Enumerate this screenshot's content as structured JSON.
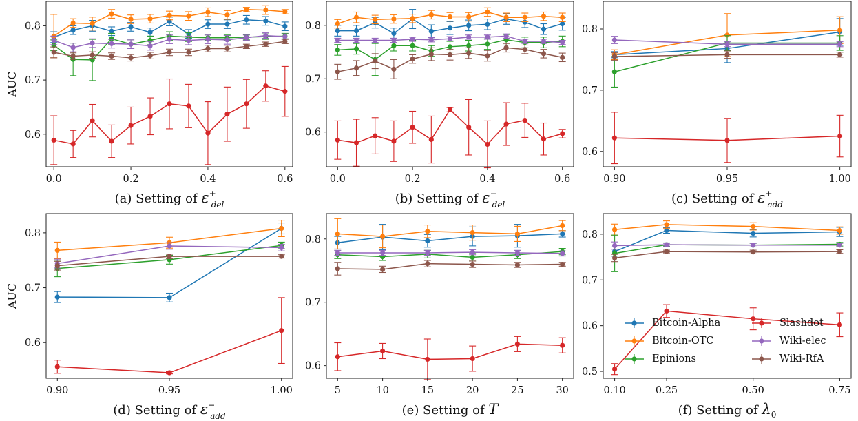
{
  "figure": {
    "series_colors": {
      "Bitcoin-Alpha": "#1f77b4",
      "Bitcoin-OTC": "#ff7f0e",
      "Epinions": "#2ca02c",
      "Slashdot": "#d62728",
      "Wiki-elec": "#9467bd",
      "Wiki-RfA": "#8c564b"
    },
    "ylabel": "AUC",
    "legend": {
      "placement": "lower-right of panel (f)",
      "entries": [
        "Bitcoin-Alpha",
        "Bitcoin-OTC",
        "Epinions",
        "Slashdot",
        "Wiki-elec",
        "Wiki-RfA"
      ]
    }
  },
  "chart_data": [
    {
      "type": "line",
      "panel": "a",
      "caption": "(a) Setting of ε⁺del",
      "caption_text": "(a) Setting of ",
      "caption_sym": "ε",
      "caption_sup": "+",
      "caption_sub": "del",
      "ylabel": "AUC",
      "xlim": [
        -0.02,
        0.62
      ],
      "ylim": [
        0.54,
        0.845
      ],
      "xticks": [
        0.0,
        0.2,
        0.4,
        0.6
      ],
      "xtick_labels": [
        "0.0",
        "0.2",
        "0.4",
        "0.6"
      ],
      "yticks": [
        0.6,
        0.7,
        0.8
      ],
      "ytick_labels": [
        "0.6",
        "0.7",
        "0.8"
      ],
      "x": [
        0.0,
        0.05,
        0.1,
        0.15,
        0.2,
        0.25,
        0.3,
        0.35,
        0.4,
        0.45,
        0.5,
        0.55,
        0.6
      ],
      "series": [
        {
          "name": "Bitcoin-Alpha",
          "values": [
            0.779,
            0.792,
            0.8,
            0.79,
            0.798,
            0.788,
            0.808,
            0.785,
            0.803,
            0.803,
            0.811,
            0.809,
            0.799
          ],
          "errors": [
            0.01,
            0.008,
            0.01,
            0.008,
            0.008,
            0.008,
            0.008,
            0.008,
            0.008,
            0.008,
            0.008,
            0.008,
            0.008
          ]
        },
        {
          "name": "Bitcoin-OTC",
          "values": [
            0.781,
            0.805,
            0.804,
            0.822,
            0.812,
            0.813,
            0.819,
            0.818,
            0.825,
            0.82,
            0.83,
            0.829,
            0.826
          ],
          "errors": [
            0.04,
            0.008,
            0.012,
            0.008,
            0.008,
            0.008,
            0.008,
            0.008,
            0.008,
            0.008,
            0.004,
            0.008,
            0.004
          ]
        },
        {
          "name": "Epinions",
          "values": [
            0.764,
            0.738,
            0.737,
            0.776,
            0.766,
            0.773,
            0.781,
            0.779,
            0.778,
            0.778,
            0.779,
            0.78,
            0.781
          ],
          "errors": [
            0.01,
            0.03,
            0.038,
            0.01,
            0.008,
            0.008,
            0.008,
            0.008,
            0.005,
            0.005,
            0.005,
            0.005,
            0.005
          ]
        },
        {
          "name": "Slashdot",
          "values": [
            0.589,
            0.582,
            0.625,
            0.587,
            0.616,
            0.633,
            0.656,
            0.652,
            0.602,
            0.637,
            0.656,
            0.689,
            0.679
          ],
          "errors": [
            0.045,
            0.025,
            0.03,
            0.03,
            0.034,
            0.034,
            0.046,
            0.04,
            0.058,
            0.05,
            0.045,
            0.028,
            0.046
          ]
        },
        {
          "name": "Wiki-elec",
          "values": [
            0.773,
            0.76,
            0.768,
            0.767,
            0.766,
            0.763,
            0.775,
            0.773,
            0.775,
            0.774,
            0.778,
            0.782,
            0.78
          ],
          "errors": [
            0.008,
            0.008,
            0.008,
            0.008,
            0.008,
            0.008,
            0.008,
            0.008,
            0.008,
            0.008,
            0.005,
            0.005,
            0.005
          ]
        },
        {
          "name": "Wiki-RfA",
          "values": [
            0.751,
            0.744,
            0.746,
            0.744,
            0.741,
            0.745,
            0.751,
            0.751,
            0.758,
            0.758,
            0.762,
            0.766,
            0.771
          ],
          "errors": [
            0.01,
            0.006,
            0.006,
            0.006,
            0.006,
            0.006,
            0.006,
            0.006,
            0.006,
            0.006,
            0.004,
            0.004,
            0.004
          ]
        }
      ]
    },
    {
      "type": "line",
      "panel": "b",
      "caption": "(b) Setting of ε⁻del",
      "caption_text": "(b) Setting of ",
      "caption_sym": "ε",
      "caption_sup": "−",
      "caption_sub": "del",
      "ylabel": "",
      "xlim": [
        -0.03,
        0.63
      ],
      "ylim": [
        0.535,
        0.845
      ],
      "xticks": [
        0.0,
        0.2,
        0.4,
        0.6
      ],
      "xtick_labels": [
        "0.0",
        "0.2",
        "0.4",
        "0.6"
      ],
      "yticks": [
        0.6,
        0.7,
        0.8
      ],
      "ytick_labels": [
        "0.6",
        "0.7",
        "0.8"
      ],
      "x": [
        0.0,
        0.05,
        0.1,
        0.15,
        0.2,
        0.25,
        0.3,
        0.35,
        0.4,
        0.45,
        0.5,
        0.55,
        0.6
      ],
      "series": [
        {
          "name": "Bitcoin-Alpha",
          "values": [
            0.79,
            0.79,
            0.805,
            0.785,
            0.812,
            0.789,
            0.795,
            0.8,
            0.802,
            0.812,
            0.806,
            0.793,
            0.803
          ],
          "errors": [
            0.01,
            0.01,
            0.01,
            0.01,
            0.018,
            0.012,
            0.012,
            0.01,
            0.01,
            0.01,
            0.01,
            0.01,
            0.012
          ]
        },
        {
          "name": "Bitcoin-OTC",
          "values": [
            0.803,
            0.815,
            0.811,
            0.812,
            0.813,
            0.82,
            0.816,
            0.816,
            0.825,
            0.815,
            0.815,
            0.817,
            0.815
          ],
          "errors": [
            0.008,
            0.01,
            0.008,
            0.008,
            0.008,
            0.008,
            0.008,
            0.008,
            0.008,
            0.008,
            0.008,
            0.008,
            0.008
          ]
        },
        {
          "name": "Epinions",
          "values": [
            0.754,
            0.756,
            0.736,
            0.762,
            0.762,
            0.752,
            0.76,
            0.762,
            0.765,
            0.773,
            0.768,
            0.768,
            0.77
          ],
          "errors": [
            0.01,
            0.01,
            0.03,
            0.01,
            0.01,
            0.01,
            0.01,
            0.01,
            0.01,
            0.01,
            0.01,
            0.01,
            0.01
          ]
        },
        {
          "name": "Slashdot",
          "values": [
            0.585,
            0.58,
            0.593,
            0.583,
            0.609,
            0.586,
            0.642,
            0.609,
            0.577,
            0.615,
            0.622,
            0.587,
            0.597
          ],
          "errors": [
            0.036,
            0.044,
            0.034,
            0.038,
            0.03,
            0.044,
            0.004,
            0.052,
            0.044,
            0.04,
            0.032,
            0.03,
            0.008
          ]
        },
        {
          "name": "Wiki-elec",
          "values": [
            0.772,
            0.772,
            0.772,
            0.772,
            0.774,
            0.773,
            0.775,
            0.778,
            0.778,
            0.78,
            0.77,
            0.77,
            0.768
          ],
          "errors": [
            0.004,
            0.004,
            0.004,
            0.004,
            0.004,
            0.004,
            0.004,
            0.004,
            0.004,
            0.004,
            0.004,
            0.004,
            0.004
          ]
        },
        {
          "name": "Wiki-RfA",
          "values": [
            0.713,
            0.72,
            0.733,
            0.718,
            0.737,
            0.746,
            0.745,
            0.748,
            0.743,
            0.758,
            0.755,
            0.747,
            0.74
          ],
          "errors": [
            0.014,
            0.014,
            0.014,
            0.018,
            0.008,
            0.012,
            0.01,
            0.01,
            0.01,
            0.008,
            0.008,
            0.008,
            0.008
          ]
        }
      ]
    },
    {
      "type": "line",
      "panel": "c",
      "caption": "(c) Setting of ε⁺add",
      "caption_text": "(c) Setting of ",
      "caption_sym": "ε",
      "caption_sup": "+",
      "caption_sub": "add",
      "ylabel": "",
      "xlim": [
        0.895,
        1.005
      ],
      "ylim": [
        0.575,
        0.845
      ],
      "xticks": [
        0.9,
        0.95,
        1.0
      ],
      "xtick_labels": [
        "0.90",
        "0.95",
        "1.00"
      ],
      "yticks": [
        0.6,
        0.7,
        0.8
      ],
      "ytick_labels": [
        "0.6",
        "0.7",
        "0.8"
      ],
      "x": [
        0.9,
        0.95,
        1.0
      ],
      "series": [
        {
          "name": "Bitcoin-Alpha",
          "values": [
            0.758,
            0.768,
            0.795
          ],
          "errors": [
            0.005,
            0.023,
            0.022
          ]
        },
        {
          "name": "Bitcoin-OTC",
          "values": [
            0.758,
            0.79,
            0.798
          ],
          "errors": [
            0.008,
            0.035,
            0.022
          ]
        },
        {
          "name": "Epinions",
          "values": [
            0.73,
            0.777,
            0.777
          ],
          "errors": [
            0.025,
            0.012,
            0.012
          ]
        },
        {
          "name": "Slashdot",
          "values": [
            0.622,
            0.618,
            0.625
          ],
          "errors": [
            0.042,
            0.036,
            0.034
          ]
        },
        {
          "name": "Wiki-elec",
          "values": [
            0.782,
            0.775,
            0.775
          ],
          "errors": [
            0.006,
            0.004,
            0.004
          ]
        },
        {
          "name": "Wiki-RfA",
          "values": [
            0.755,
            0.758,
            0.758
          ],
          "errors": [
            0.006,
            0.006,
            0.004
          ]
        }
      ]
    },
    {
      "type": "line",
      "panel": "d",
      "caption": "(d) Setting of ε⁻add",
      "caption_text": "(d) Setting of ",
      "caption_sym": "ε",
      "caption_sup": "−",
      "caption_sub": "add",
      "ylabel": "AUC",
      "xlim": [
        0.895,
        1.005
      ],
      "ylim": [
        0.535,
        0.835
      ],
      "xticks": [
        0.9,
        0.95,
        1.0
      ],
      "xtick_labels": [
        "0.90",
        "0.95",
        "1.00"
      ],
      "yticks": [
        0.6,
        0.7,
        0.8
      ],
      "ytick_labels": [
        "0.6",
        "0.7",
        "0.8"
      ],
      "x": [
        0.9,
        0.95,
        1.0
      ],
      "series": [
        {
          "name": "Bitcoin-Alpha",
          "values": [
            0.683,
            0.682,
            0.808
          ],
          "errors": [
            0.01,
            0.008,
            0.01
          ]
        },
        {
          "name": "Bitcoin-OTC",
          "values": [
            0.768,
            0.782,
            0.808
          ],
          "errors": [
            0.015,
            0.01,
            0.015
          ]
        },
        {
          "name": "Epinions",
          "values": [
            0.735,
            0.751,
            0.777
          ],
          "errors": [
            0.015,
            0.008,
            0.006
          ]
        },
        {
          "name": "Slashdot",
          "values": [
            0.556,
            0.545,
            0.622
          ],
          "errors": [
            0.012,
            0.002,
            0.06
          ]
        },
        {
          "name": "Wiki-elec",
          "values": [
            0.744,
            0.776,
            0.773
          ],
          "errors": [
            0.008,
            0.006,
            0.006
          ]
        },
        {
          "name": "Wiki-RfA",
          "values": [
            0.74,
            0.757,
            0.757
          ],
          "errors": [
            0.008,
            0.004,
            0.003
          ]
        }
      ]
    },
    {
      "type": "line",
      "panel": "e",
      "caption": "(e) Setting of T",
      "caption_text": "(e) Setting of ",
      "caption_sym": "T",
      "caption_sup": "",
      "caption_sub": "",
      "ylabel": "",
      "xlim": [
        3.75,
        31.25
      ],
      "ylim": [
        0.58,
        0.84
      ],
      "xticks": [
        5,
        10,
        15,
        20,
        25,
        30
      ],
      "xtick_labels": [
        "5",
        "10",
        "15",
        "20",
        "25",
        "30"
      ],
      "yticks": [
        0.6,
        0.7,
        0.8
      ],
      "ytick_labels": [
        "0.6",
        "0.7",
        "0.8"
      ],
      "x": [
        5,
        10,
        15,
        20,
        25,
        30
      ],
      "series": [
        {
          "name": "Bitcoin-Alpha",
          "values": [
            0.794,
            0.803,
            0.797,
            0.804,
            0.805,
            0.808
          ],
          "errors": [
            0.01,
            0.02,
            0.01,
            0.015,
            0.018,
            0.005
          ]
        },
        {
          "name": "Bitcoin-OTC",
          "values": [
            0.808,
            0.804,
            0.812,
            0.81,
            0.808,
            0.821
          ],
          "errors": [
            0.024,
            0.018,
            0.01,
            0.012,
            0.012,
            0.008
          ]
        },
        {
          "name": "Epinions",
          "values": [
            0.775,
            0.772,
            0.776,
            0.771,
            0.775,
            0.78
          ],
          "errors": [
            0.006,
            0.006,
            0.006,
            0.006,
            0.006,
            0.005
          ]
        },
        {
          "name": "Slashdot",
          "values": [
            0.614,
            0.623,
            0.61,
            0.611,
            0.634,
            0.632
          ],
          "errors": [
            0.022,
            0.012,
            0.032,
            0.02,
            0.012,
            0.012
          ]
        },
        {
          "name": "Wiki-elec",
          "values": [
            0.778,
            0.778,
            0.778,
            0.779,
            0.778,
            0.777
          ],
          "errors": [
            0.004,
            0.004,
            0.004,
            0.004,
            0.004,
            0.004
          ]
        },
        {
          "name": "Wiki-RfA",
          "values": [
            0.753,
            0.752,
            0.761,
            0.76,
            0.759,
            0.76
          ],
          "errors": [
            0.01,
            0.005,
            0.005,
            0.005,
            0.004,
            0.003
          ]
        }
      ]
    },
    {
      "type": "line",
      "panel": "f",
      "caption": "(f) Setting of λ0",
      "caption_text": "(f) Setting of ",
      "caption_sym": "λ",
      "caption_sup": "",
      "caption_sub": "0",
      "ylabel": "",
      "xlim": [
        0.067,
        0.783
      ],
      "ylim": [
        0.485,
        0.845
      ],
      "xticks": [
        0.1,
        0.25,
        0.5,
        0.75
      ],
      "xtick_labels": [
        "0.10",
        "0.25",
        "0.50",
        "0.75"
      ],
      "yticks": [
        0.5,
        0.6,
        0.7,
        0.8
      ],
      "ytick_labels": [
        "0.5",
        "0.6",
        "0.7",
        "0.8"
      ],
      "x": [
        0.1,
        0.25,
        0.5,
        0.75
      ],
      "series": [
        {
          "name": "Bitcoin-Alpha",
          "values": [
            0.762,
            0.808,
            0.802,
            0.805
          ],
          "errors": [
            0.01,
            0.006,
            0.008,
            0.01
          ]
        },
        {
          "name": "Bitcoin-OTC",
          "values": [
            0.81,
            0.821,
            0.817,
            0.808
          ],
          "errors": [
            0.012,
            0.008,
            0.008,
            0.008
          ]
        },
        {
          "name": "Epinions",
          "values": [
            0.758,
            0.777,
            0.776,
            0.778
          ],
          "errors": [
            0.04,
            0.004,
            0.004,
            0.004
          ]
        },
        {
          "name": "Slashdot",
          "values": [
            0.505,
            0.632,
            0.615,
            0.602
          ],
          "errors": [
            0.012,
            0.014,
            0.024,
            0.026
          ]
        },
        {
          "name": "Wiki-elec",
          "values": [
            0.775,
            0.777,
            0.776,
            0.776
          ],
          "errors": [
            0.008,
            0.003,
            0.004,
            0.004
          ]
        },
        {
          "name": "Wiki-RfA",
          "values": [
            0.748,
            0.762,
            0.761,
            0.762
          ],
          "errors": [
            0.008,
            0.003,
            0.004,
            0.004
          ]
        }
      ]
    }
  ]
}
